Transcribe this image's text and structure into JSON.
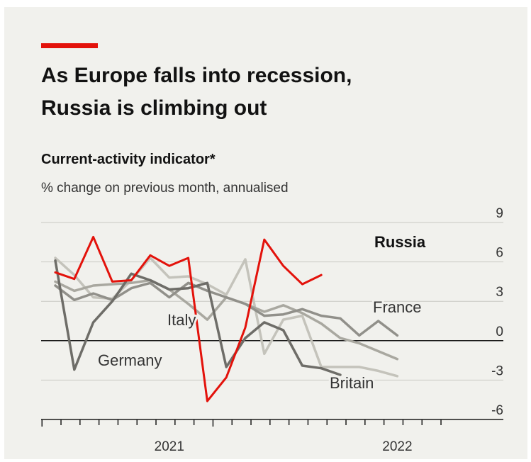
{
  "header": {
    "title_line1": "As Europe falls into recession,",
    "title_line2": "Russia is climbing out",
    "subtitle": "Current-activity indicator*",
    "units": "% change on previous month, annualised"
  },
  "colors": {
    "accent": "#e3120b",
    "background": "#f1f1ed"
  },
  "chart_data": {
    "type": "line",
    "x": [
      "2020-12",
      "2021-01",
      "2021-02",
      "2021-03",
      "2021-04",
      "2021-05",
      "2021-06",
      "2021-07",
      "2021-08",
      "2021-09",
      "2021-10",
      "2021-11",
      "2021-12",
      "2022-01",
      "2022-02",
      "2022-03",
      "2022-04",
      "2022-05",
      "2022-06",
      "2022-07",
      "2022-08"
    ],
    "xtick_labels": [
      {
        "label": "2021",
        "x": "2021-06"
      },
      {
        "label": "2022",
        "x": "2022-06"
      }
    ],
    "ylim": [
      -6,
      9
    ],
    "yticks": [
      9,
      6,
      3,
      0,
      -3,
      -6
    ],
    "grid": "horizontal",
    "series": [
      {
        "name": "Britain",
        "color": "#c4c3bb",
        "width": 3.5,
        "values": [
          6.3,
          5.0,
          3.3,
          3.2,
          4.6,
          6.3,
          4.8,
          4.9,
          4.3,
          3.5,
          6.2,
          -1.0,
          1.6,
          1.9,
          -2.0,
          -2.0,
          -2.0,
          -2.3,
          -2.7,
          null,
          null
        ]
      },
      {
        "name": "France",
        "color": "#a9a8a0",
        "width": 3.5,
        "values": [
          4.5,
          3.8,
          4.2,
          4.3,
          4.4,
          4.6,
          3.9,
          2.8,
          1.6,
          3.3,
          2.8,
          2.2,
          2.7,
          2.1,
          1.3,
          0.2,
          -0.2,
          -0.8,
          -1.4,
          null,
          null
        ]
      },
      {
        "name": "Italy",
        "color": "#91908a",
        "width": 3.5,
        "values": [
          4.2,
          3.1,
          3.6,
          3.1,
          4.0,
          4.4,
          3.3,
          4.4,
          3.8,
          3.3,
          2.8,
          1.9,
          2.0,
          2.4,
          1.9,
          1.7,
          0.4,
          1.5,
          0.4,
          null,
          null
        ]
      },
      {
        "name": "Germany",
        "color": "#6e6d68",
        "width": 3.5,
        "values": [
          6.1,
          -2.2,
          1.4,
          3.0,
          5.1,
          4.6,
          3.9,
          4.0,
          4.4,
          -2.0,
          0.2,
          1.4,
          0.8,
          -1.9,
          -2.1,
          -2.6,
          null,
          null,
          null,
          null,
          null
        ]
      },
      {
        "name": "Russia",
        "color": "#e3120b",
        "width": 3,
        "values": [
          5.2,
          4.7,
          7.9,
          4.5,
          4.6,
          6.5,
          5.7,
          6.3,
          -4.6,
          -2.8,
          1.0,
          7.7,
          5.7,
          4.3,
          5.0,
          null,
          null,
          null,
          null,
          null,
          null
        ]
      }
    ],
    "labels": [
      {
        "text": "Russia",
        "series": "Russia",
        "bold": true
      },
      {
        "text": "France",
        "series": "France"
      },
      {
        "text": "Italy",
        "series": "Italy"
      },
      {
        "text": "Germany",
        "series": "Germany"
      },
      {
        "text": "Britain",
        "series": "Britain"
      }
    ]
  }
}
